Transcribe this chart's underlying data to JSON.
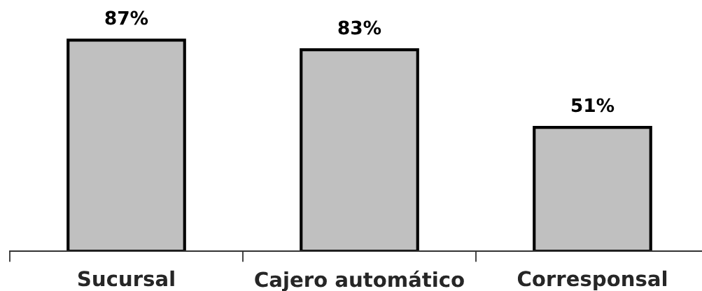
{
  "chart_data": {
    "type": "bar",
    "categories": [
      "Sucursal",
      "Cajero automático",
      "Corresponsal"
    ],
    "values": [
      87,
      83,
      51
    ],
    "color": "#c0c0c0",
    "value_labels": [
      "87%",
      "83%",
      "51%"
    ],
    "grid": false,
    "legend": false
  }
}
